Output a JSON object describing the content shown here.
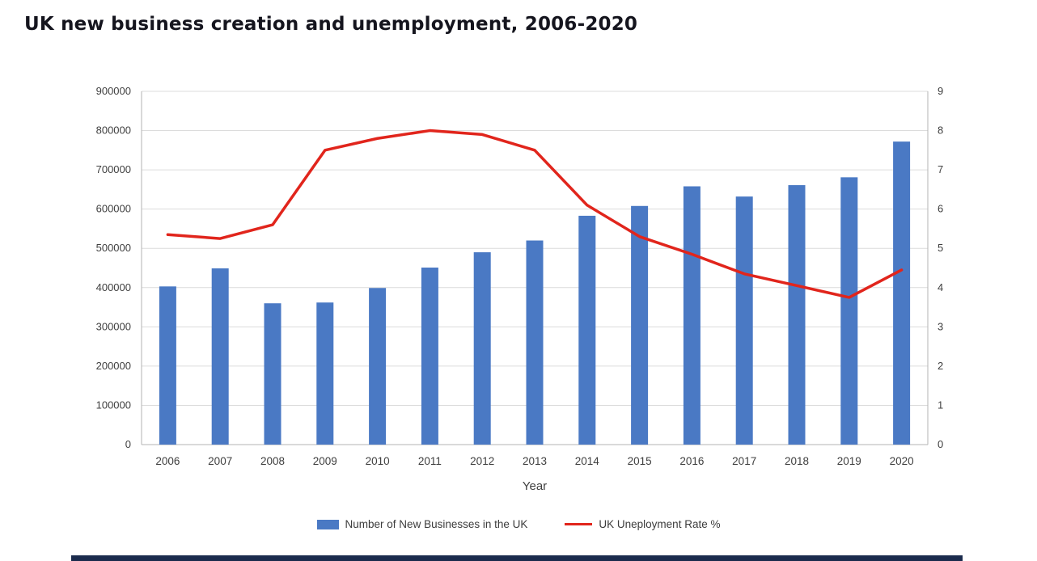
{
  "page": {
    "title": "UK new business creation and unemployment, 2006-2020",
    "accent_bar_color": "#1b2b4d"
  },
  "chart_data": {
    "type": "bar",
    "subtype": "combo-bar-line",
    "title": "UK new business creation and unemployment, 2006-2020",
    "xlabel": "Year",
    "grid": true,
    "legend_position": "bottom",
    "categories": [
      "2006",
      "2007",
      "2008",
      "2009",
      "2010",
      "2011",
      "2012",
      "2013",
      "2014",
      "2015",
      "2016",
      "2017",
      "2018",
      "2019",
      "2020"
    ],
    "series": [
      {
        "name": "Number of New Businesses in the UK",
        "type": "bar",
        "axis": "left",
        "color": "#4a79c4",
        "values": [
          403000,
          449000,
          360000,
          362000,
          399000,
          451000,
          490000,
          520000,
          583000,
          608000,
          658000,
          632000,
          661000,
          681000,
          772000
        ]
      },
      {
        "name": "UK Uneployment Rate %",
        "type": "line",
        "axis": "right",
        "color": "#e1251c",
        "values": [
          5.35,
          5.25,
          5.6,
          7.5,
          7.8,
          8.0,
          7.9,
          7.5,
          6.1,
          5.3,
          4.85,
          4.35,
          4.05,
          3.75,
          4.45
        ]
      }
    ],
    "left_axis": {
      "min": 0,
      "max": 900000,
      "step": 100000
    },
    "right_axis": {
      "min": 0,
      "max": 9,
      "step": 1
    }
  }
}
